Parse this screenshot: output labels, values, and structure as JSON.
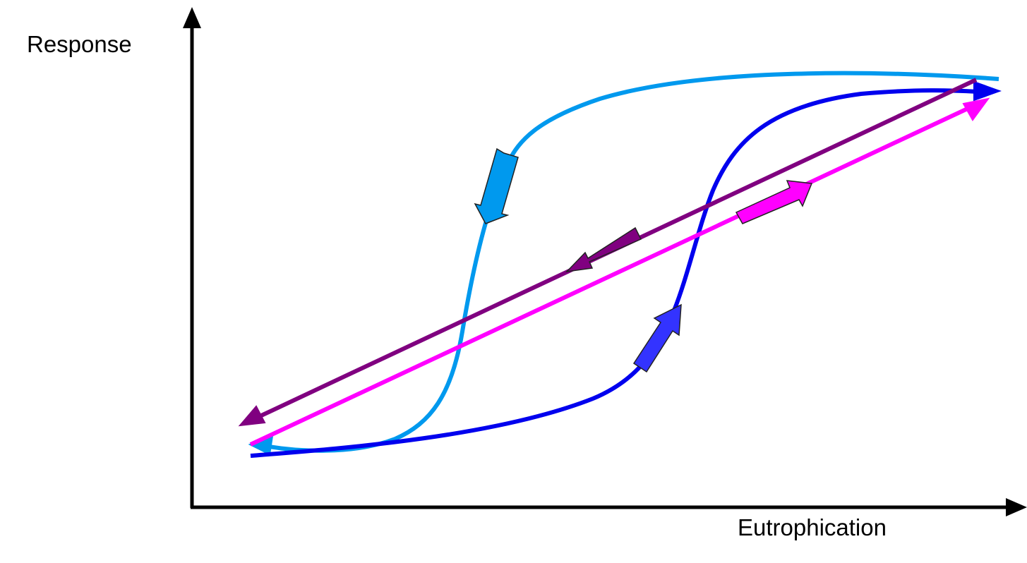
{
  "axes": {
    "y_label": "Response",
    "x_label": "Eutrophication"
  },
  "colors": {
    "axis": "#000000",
    "recovery_curve": "#0099ee",
    "eutrophication_curve": "#0000ee",
    "linear_recovery": "#800080",
    "linear_eutrophication": "#ff00ff",
    "block_arrow_recovery_curve": "#0099ee",
    "block_arrow_eutrophication_curve": "#3333ff",
    "block_arrow_linear_recovery": "#800080",
    "block_arrow_linear_eutrophication": "#ff00ff"
  },
  "icons": {
    "direction_arrows": "block-arrow"
  }
}
